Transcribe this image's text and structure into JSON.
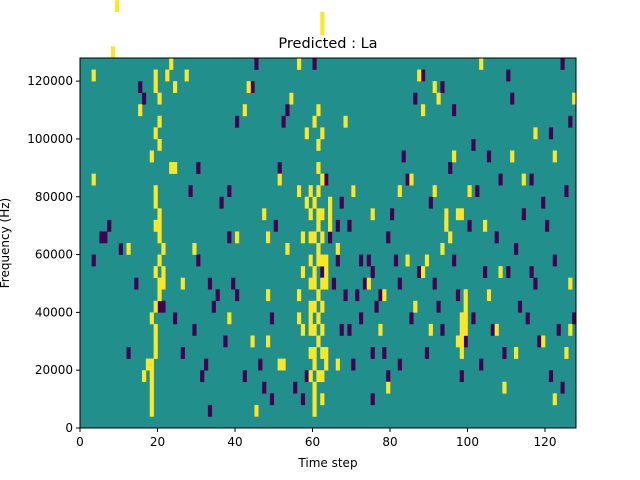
{
  "chart_data": {
    "type": "heatmap",
    "title": "Predicted : La",
    "xlabel": "Time step",
    "ylabel": "Frequency (Hz)",
    "xlim": [
      0,
      128
    ],
    "ylim": [
      0,
      128000
    ],
    "x_ticks": [
      0,
      20,
      40,
      60,
      80,
      100,
      120
    ],
    "y_ticks": [
      0,
      20000,
      40000,
      60000,
      80000,
      100000,
      120000
    ],
    "x_tick_labels": [
      "0",
      "20",
      "40",
      "60",
      "80",
      "100",
      "120"
    ],
    "y_tick_labels": [
      "0",
      "20000",
      "40000",
      "60000",
      "80000",
      "100000",
      "120000"
    ],
    "grid": false,
    "legend": "none",
    "colors": {
      "background": "#21908d",
      "low": "#440154",
      "high": "#fde725"
    },
    "cell_size": {
      "time_steps": 1,
      "hz": 4000
    },
    "bright_cells": [
      [
        18,
        1
      ],
      [
        18,
        2
      ],
      [
        18,
        3
      ],
      [
        18,
        4
      ],
      [
        18,
        5
      ],
      [
        19,
        6
      ],
      [
        19,
        7
      ],
      [
        19,
        8
      ],
      [
        18,
        9
      ],
      [
        19,
        10
      ],
      [
        20,
        11
      ],
      [
        20,
        12
      ],
      [
        19,
        13
      ],
      [
        20,
        14
      ],
      [
        21,
        15
      ],
      [
        20,
        16
      ],
      [
        19,
        17
      ],
      [
        20,
        18
      ],
      [
        19,
        19
      ],
      [
        19,
        20
      ],
      [
        18,
        23
      ],
      [
        20,
        24
      ],
      [
        19,
        25
      ],
      [
        20,
        26
      ],
      [
        20,
        28
      ],
      [
        19,
        29
      ],
      [
        19,
        30
      ],
      [
        20,
        17
      ],
      [
        21,
        12
      ],
      [
        21,
        13
      ],
      [
        60,
        1
      ],
      [
        60,
        2
      ],
      [
        60,
        3
      ],
      [
        61,
        4
      ],
      [
        60,
        5
      ],
      [
        60,
        6
      ],
      [
        61,
        7
      ],
      [
        60,
        8
      ],
      [
        61,
        9
      ],
      [
        60,
        10
      ],
      [
        61,
        11
      ],
      [
        60,
        12
      ],
      [
        60,
        13
      ],
      [
        61,
        14
      ],
      [
        61,
        15
      ],
      [
        60,
        16
      ],
      [
        61,
        17
      ],
      [
        61,
        18
      ],
      [
        60,
        19
      ],
      [
        61,
        20
      ],
      [
        62,
        21
      ],
      [
        61,
        22
      ],
      [
        61,
        24
      ],
      [
        62,
        25
      ],
      [
        60,
        26
      ],
      [
        61,
        27
      ],
      [
        59,
        4
      ],
      [
        59,
        6
      ],
      [
        59,
        8
      ],
      [
        59,
        10
      ],
      [
        59,
        12
      ],
      [
        59,
        14
      ],
      [
        59,
        16
      ],
      [
        59,
        18
      ],
      [
        59,
        20
      ],
      [
        62,
        2
      ],
      [
        62,
        4
      ],
      [
        62,
        6
      ],
      [
        62,
        8
      ],
      [
        62,
        10
      ],
      [
        62,
        12
      ],
      [
        62,
        14
      ],
      [
        62,
        16
      ],
      [
        62,
        18
      ],
      [
        63,
        5
      ],
      [
        63,
        6
      ],
      [
        63,
        12
      ],
      [
        63,
        13
      ],
      [
        63,
        14
      ],
      [
        64,
        18
      ],
      [
        64,
        19
      ],
      [
        56,
        20
      ],
      [
        57,
        16
      ],
      [
        56,
        11
      ],
      [
        56,
        9
      ],
      [
        57,
        8
      ],
      [
        98,
        6
      ],
      [
        98,
        7
      ],
      [
        98,
        8
      ],
      [
        98,
        9
      ],
      [
        99,
        8
      ],
      [
        99,
        9
      ],
      [
        99,
        10
      ],
      [
        99,
        11
      ],
      [
        97,
        7
      ],
      [
        96,
        23
      ],
      [
        94,
        17
      ],
      [
        97,
        18
      ],
      [
        23,
        22
      ],
      [
        24,
        22
      ],
      [
        3,
        21
      ],
      [
        3,
        30
      ],
      [
        8,
        32
      ],
      [
        9,
        36
      ],
      [
        15,
        27
      ],
      [
        23,
        31
      ],
      [
        27,
        30
      ],
      [
        42,
        27
      ],
      [
        43,
        29
      ],
      [
        47,
        18
      ],
      [
        48,
        11
      ],
      [
        48,
        7
      ],
      [
        51,
        21
      ],
      [
        51,
        5
      ],
      [
        54,
        28
      ],
      [
        56,
        31
      ],
      [
        58,
        19
      ],
      [
        58,
        25
      ],
      [
        62,
        34
      ],
      [
        62,
        35
      ],
      [
        66,
        15
      ],
      [
        68,
        26
      ],
      [
        70,
        20
      ],
      [
        74,
        12
      ],
      [
        77,
        8
      ],
      [
        79,
        3
      ],
      [
        82,
        20
      ],
      [
        84,
        14
      ],
      [
        85,
        21
      ],
      [
        87,
        30
      ],
      [
        88,
        27
      ],
      [
        89,
        14
      ],
      [
        88,
        13
      ],
      [
        90,
        8
      ],
      [
        91,
        20
      ],
      [
        91,
        29
      ],
      [
        92,
        28
      ],
      [
        93,
        15
      ],
      [
        94,
        18
      ],
      [
        98,
        18
      ],
      [
        100,
        20
      ],
      [
        103,
        31
      ],
      [
        105,
        11
      ],
      [
        107,
        8
      ],
      [
        109,
        3
      ],
      [
        111,
        23
      ],
      [
        114,
        21
      ],
      [
        117,
        25
      ],
      [
        122,
        23
      ],
      [
        126,
        8
      ],
      [
        126,
        12
      ],
      [
        127,
        28
      ],
      [
        12,
        15
      ],
      [
        16,
        4
      ],
      [
        17,
        5
      ],
      [
        26,
        12
      ],
      [
        29,
        15
      ],
      [
        38,
        9
      ],
      [
        40,
        16
      ],
      [
        44,
        7
      ],
      [
        45,
        1
      ],
      [
        52,
        5
      ],
      [
        53,
        15
      ],
      [
        59,
        9
      ],
      [
        64,
        17
      ],
      [
        66,
        5
      ],
      [
        75,
        18
      ],
      [
        78,
        11
      ],
      [
        86,
        10
      ],
      [
        95,
        16
      ],
      [
        104,
        17
      ],
      [
        108,
        13
      ],
      [
        112,
        6
      ],
      [
        119,
        7
      ],
      [
        122,
        2
      ],
      [
        125,
        6
      ],
      [
        22,
        30
      ],
      [
        24,
        29
      ],
      [
        48,
        16
      ],
      [
        57,
        13
      ]
    ],
    "dark_cells": [
      [
        3,
        14
      ],
      [
        5,
        16
      ],
      [
        6,
        16
      ],
      [
        7,
        17
      ],
      [
        10,
        15
      ],
      [
        12,
        6
      ],
      [
        14,
        12
      ],
      [
        20,
        10
      ],
      [
        21,
        10
      ],
      [
        24,
        9
      ],
      [
        26,
        6
      ],
      [
        28,
        20
      ],
      [
        29,
        8
      ],
      [
        30,
        14
      ],
      [
        31,
        4
      ],
      [
        32,
        5
      ],
      [
        33,
        12
      ],
      [
        33,
        1
      ],
      [
        34,
        10
      ],
      [
        35,
        11
      ],
      [
        37,
        7
      ],
      [
        38,
        16
      ],
      [
        38,
        20
      ],
      [
        39,
        12
      ],
      [
        40,
        11
      ],
      [
        42,
        4
      ],
      [
        44,
        29
      ],
      [
        45,
        1
      ],
      [
        46,
        5
      ],
      [
        47,
        3
      ],
      [
        48,
        16
      ],
      [
        49,
        9
      ],
      [
        49,
        2
      ],
      [
        50,
        17
      ],
      [
        51,
        22
      ],
      [
        52,
        26
      ],
      [
        54,
        28
      ],
      [
        55,
        3
      ],
      [
        56,
        20
      ],
      [
        57,
        2
      ],
      [
        58,
        4
      ],
      [
        59,
        14
      ],
      [
        62,
        13
      ],
      [
        63,
        21
      ],
      [
        64,
        16
      ],
      [
        65,
        12
      ],
      [
        66,
        14
      ],
      [
        67,
        8
      ],
      [
        67,
        19
      ],
      [
        68,
        11
      ],
      [
        69,
        8
      ],
      [
        69,
        17
      ],
      [
        70,
        5
      ],
      [
        70,
        20
      ],
      [
        71,
        11
      ],
      [
        72,
        9
      ],
      [
        73,
        12
      ],
      [
        74,
        14
      ],
      [
        75,
        2
      ],
      [
        75,
        13
      ],
      [
        76,
        10
      ],
      [
        77,
        11
      ],
      [
        78,
        6
      ],
      [
        79,
        16
      ],
      [
        80,
        18
      ],
      [
        81,
        14
      ],
      [
        82,
        5
      ],
      [
        82,
        12
      ],
      [
        83,
        23
      ],
      [
        84,
        21
      ],
      [
        85,
        9
      ],
      [
        86,
        28
      ],
      [
        87,
        13
      ],
      [
        88,
        30
      ],
      [
        89,
        6
      ],
      [
        90,
        19
      ],
      [
        91,
        12
      ],
      [
        92,
        10
      ],
      [
        93,
        8
      ],
      [
        94,
        18
      ],
      [
        95,
        22
      ],
      [
        96,
        14
      ],
      [
        97,
        11
      ],
      [
        98,
        4
      ],
      [
        99,
        7
      ],
      [
        100,
        17
      ],
      [
        101,
        9
      ],
      [
        102,
        20
      ],
      [
        103,
        5
      ],
      [
        104,
        13
      ],
      [
        105,
        11
      ],
      [
        106,
        8
      ],
      [
        107,
        16
      ],
      [
        108,
        21
      ],
      [
        109,
        6
      ],
      [
        110,
        13
      ],
      [
        111,
        28
      ],
      [
        112,
        15
      ],
      [
        113,
        10
      ],
      [
        114,
        18
      ],
      [
        115,
        9
      ],
      [
        116,
        21
      ],
      [
        117,
        12
      ],
      [
        118,
        7
      ],
      [
        119,
        19
      ],
      [
        120,
        17
      ],
      [
        121,
        25
      ],
      [
        122,
        14
      ],
      [
        123,
        8
      ],
      [
        124,
        3
      ],
      [
        125,
        20
      ],
      [
        126,
        26
      ],
      [
        127,
        9
      ],
      [
        15,
        29
      ],
      [
        16,
        28
      ],
      [
        40,
        26
      ],
      [
        60,
        31
      ],
      [
        72,
        14
      ],
      [
        79,
        4
      ],
      [
        96,
        27
      ],
      [
        105,
        23
      ],
      [
        110,
        30
      ],
      [
        121,
        4
      ],
      [
        30,
        22
      ],
      [
        36,
        19
      ],
      [
        45,
        31
      ],
      [
        53,
        27
      ],
      [
        66,
        17
      ],
      [
        75,
        6
      ],
      [
        93,
        29
      ],
      [
        101,
        24
      ],
      [
        116,
        13
      ],
      [
        124,
        31
      ]
    ]
  }
}
